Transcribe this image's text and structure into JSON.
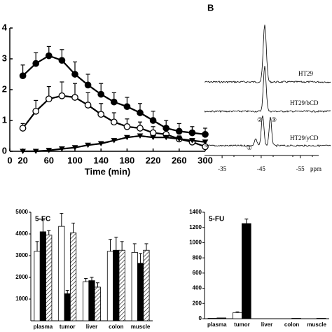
{
  "chart_data": [
    {
      "type": "line",
      "xlabel": "Time (min)",
      "xlim": [
        0,
        300
      ],
      "xticks": [
        0,
        20,
        60,
        100,
        140,
        180,
        220,
        260,
        300
      ],
      "ylim": [
        0,
        4
      ],
      "yticks": [
        0,
        1,
        2,
        3,
        4
      ],
      "x": [
        20,
        40,
        60,
        80,
        100,
        120,
        140,
        160,
        180,
        200,
        220,
        240,
        260,
        280,
        300
      ],
      "series": [
        {
          "marker": "circle",
          "color": "#000000",
          "values": [
            2.45,
            2.85,
            3.1,
            2.95,
            2.5,
            2.15,
            1.85,
            1.6,
            1.45,
            1.25,
            1.0,
            0.75,
            0.65,
            0.6,
            0.55
          ],
          "errors": [
            0.35,
            0.35,
            0.3,
            0.35,
            0.4,
            0.35,
            0.35,
            0.3,
            0.3,
            0.3,
            0.3,
            0.25,
            0.25,
            0.2,
            0.2
          ]
        },
        {
          "marker": "circle",
          "color": "#ffffff",
          "values": [
            0.75,
            1.3,
            1.7,
            1.8,
            1.75,
            1.5,
            1.2,
            0.95,
            0.8,
            0.75,
            0.6,
            0.55,
            0.4,
            0.3,
            0.15
          ],
          "errors": [
            0.15,
            0.35,
            0.4,
            0.45,
            0.45,
            0.4,
            0.35,
            0.3,
            0.25,
            0.2,
            0.2,
            0.15,
            0.1,
            0.1,
            0.05
          ]
        },
        {
          "marker": "triangle",
          "color": "#000000",
          "values": [
            0,
            0,
            0.03,
            0.08,
            0.12,
            0.2,
            0.25,
            0.35,
            0.45,
            0.5,
            0.45,
            0.45,
            0.4,
            0.35,
            0.3
          ]
        }
      ]
    },
    {
      "type": "spectrum",
      "label": "B",
      "xlim": [
        -30.5,
        -59
      ],
      "xticks": [
        -35,
        -45,
        -55
      ],
      "xlabel": "ppm",
      "traces": [
        "HT29",
        "HT29/bCD",
        "HT29/yCD"
      ],
      "peaks": [
        "①",
        "②",
        "③"
      ]
    },
    {
      "type": "grouped_bar",
      "title": "5-FC",
      "categories": [
        "plasma",
        "tumor",
        "liver",
        "colon",
        "muscle"
      ],
      "ylim": [
        0,
        5000
      ],
      "yticks": [
        1000,
        2000,
        3000,
        4000,
        5000
      ],
      "series": [
        {
          "color": "#ffffff",
          "values": [
            3200,
            4350,
            1800,
            3200,
            3150
          ],
          "errors": [
            450,
            600,
            150,
            550,
            400
          ]
        },
        {
          "color": "#000000",
          "values": [
            4100,
            1250,
            1850,
            3250,
            2650
          ],
          "errors": [
            550,
            150,
            150,
            600,
            450
          ]
        },
        {
          "color": "hatch",
          "values": [
            3950,
            4050,
            1550,
            3250,
            3250
          ],
          "errors": [
            200,
            450,
            200,
            400,
            300
          ]
        }
      ]
    },
    {
      "type": "grouped_bar",
      "title": "5-FU",
      "categories": [
        "plasma",
        "tumor",
        "liver",
        "colon",
        "muscle"
      ],
      "ylim": [
        0,
        1400
      ],
      "yticks": [
        0,
        200,
        400,
        600,
        800,
        1000,
        1200,
        1400
      ],
      "series": [
        {
          "color": "#ffffff",
          "values": [
            5,
            80,
            0,
            0,
            0
          ],
          "errors": [
            0,
            10,
            0,
            0,
            0
          ]
        },
        {
          "color": "#000000",
          "values": [
            10,
            1250,
            0,
            5,
            5
          ],
          "errors": [
            0,
            60,
            0,
            0,
            0
          ]
        }
      ]
    }
  ]
}
